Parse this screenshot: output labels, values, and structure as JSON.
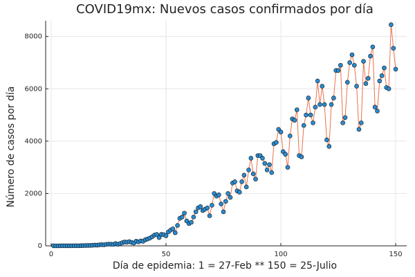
{
  "chart_data": {
    "type": "scatter-line",
    "title": "COVID19mx: Nuevos casos confirmados por día",
    "x_label": "Día de epidemia: 1 = 27-Feb ** 150 = 25-Julio",
    "y_label": "Número de casos por día",
    "x": [
      1,
      2,
      3,
      4,
      5,
      6,
      7,
      8,
      9,
      10,
      11,
      12,
      13,
      14,
      15,
      16,
      17,
      18,
      19,
      20,
      21,
      22,
      23,
      24,
      25,
      26,
      27,
      28,
      29,
      30,
      31,
      32,
      33,
      34,
      35,
      36,
      37,
      38,
      39,
      40,
      41,
      42,
      43,
      44,
      45,
      46,
      47,
      48,
      49,
      50,
      51,
      52,
      53,
      54,
      55,
      56,
      57,
      58,
      59,
      60,
      61,
      62,
      63,
      64,
      65,
      66,
      67,
      68,
      69,
      70,
      71,
      72,
      73,
      74,
      75,
      76,
      77,
      78,
      79,
      80,
      81,
      82,
      83,
      84,
      85,
      86,
      87,
      88,
      89,
      90,
      91,
      92,
      93,
      94,
      95,
      96,
      97,
      98,
      99,
      100,
      101,
      102,
      103,
      104,
      105,
      106,
      107,
      108,
      109,
      110,
      111,
      112,
      113,
      114,
      115,
      116,
      117,
      118,
      119,
      120,
      121,
      122,
      123,
      124,
      125,
      126,
      127,
      128,
      129,
      130,
      131,
      132,
      133,
      134,
      135,
      136,
      137,
      138,
      139,
      140,
      141,
      142,
      143,
      144,
      145,
      146,
      147,
      148,
      149,
      150
    ],
    "series": [
      {
        "color": "#2a8bd0",
        "line_color": "#e8704a",
        "values": [
          1,
          0,
          0,
          1,
          1,
          2,
          1,
          3,
          2,
          3,
          5,
          3,
          7,
          10,
          12,
          14,
          15,
          22,
          29,
          25,
          39,
          46,
          38,
          55,
          66,
          61,
          54,
          87,
          58,
          84,
          121,
          146,
          137,
          161,
          131,
          107,
          178,
          151,
          187,
          174,
          232,
          264,
          296,
          348,
          411,
          435,
          316,
          437,
          430,
          383,
          530,
          600,
          650,
          500,
          780,
          1050,
          1100,
          1250,
          950,
          850,
          900,
          1100,
          1300,
          1450,
          1500,
          1350,
          1400,
          1450,
          1150,
          1550,
          2000,
          1900,
          1950,
          1600,
          1300,
          1700,
          2000,
          1850,
          2400,
          2450,
          2100,
          2050,
          2450,
          2700,
          2250,
          2900,
          3350,
          2750,
          2550,
          3450,
          3450,
          3350,
          3150,
          2900,
          3100,
          2800,
          3900,
          3950,
          4450,
          4350,
          3600,
          3500,
          3000,
          4200,
          4850,
          4800,
          5200,
          3450,
          3400,
          4600,
          5000,
          5650,
          5000,
          4700,
          5300,
          6300,
          5400,
          6100,
          5400,
          4050,
          3800,
          5400,
          5650,
          6700,
          6700,
          6900,
          4700,
          4900,
          6250,
          7000,
          7300,
          6900,
          6100,
          4450,
          4700,
          7050,
          6200,
          6400,
          7250,
          7600,
          5300,
          5150,
          6300,
          6500,
          6800,
          6050,
          6000,
          8450,
          7550,
          6750
        ]
      }
    ],
    "xlim": [
      -2.4,
      154.8
    ],
    "ylim": [
      0,
      8600
    ],
    "xticks": [
      0,
      50,
      100,
      150
    ],
    "yticks": [
      0,
      2000,
      4000,
      6000,
      8000
    ],
    "grid": true
  }
}
